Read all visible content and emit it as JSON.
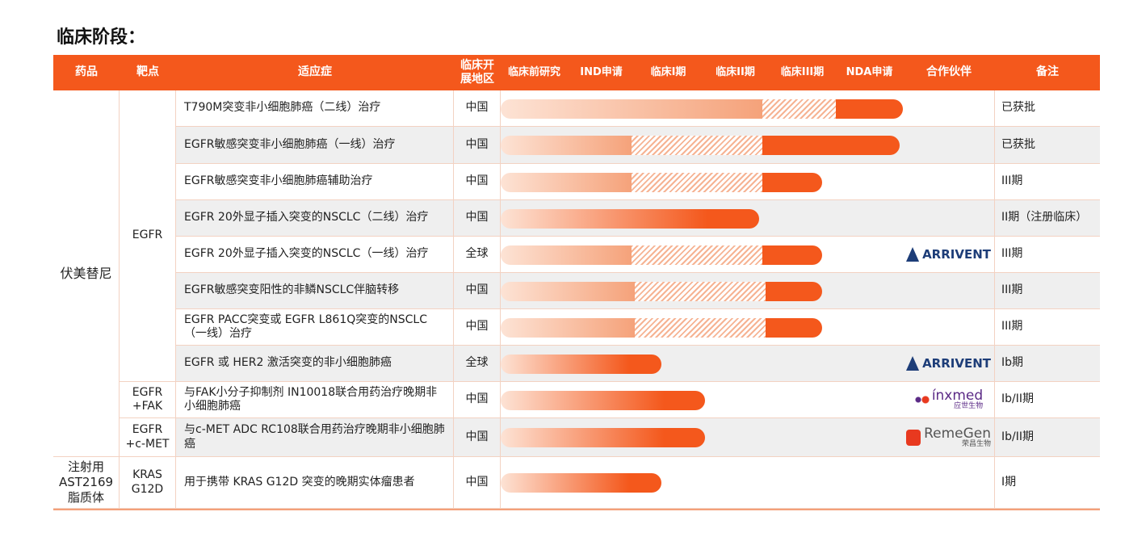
{
  "title": "临床阶段：",
  "table": {
    "header": [
      "药品",
      "靶点",
      "适应症",
      "临床开展地区",
      "临床前研究",
      "IND申请",
      "临床I期",
      "临床II期",
      "临床III期",
      "NDA申请",
      "合作伙伴",
      "备注"
    ],
    "drugs": [
      {
        "name": "伏美替尼",
        "targets": [
          {
            "name": "EGFR",
            "rows": [
              {
                "indication": "T790M突变非小细胞肺癌（二线）治疗",
                "region": "中国",
                "bar": {
                  "hatch": [
                    3.9,
                    5.0
                  ],
                  "end": 6.0
                },
                "note": "已获批"
              },
              {
                "indication": "EGFR敏感突变非小细胞肺癌（一线）治疗",
                "region": "中国",
                "bar": {
                  "hatch": [
                    1.95,
                    3.9
                  ],
                  "end": 5.95
                },
                "note": "已获批"
              },
              {
                "indication": "EGFR敏感突变非小细胞肺癌辅助治疗",
                "region": "中国",
                "bar": {
                  "hatch": [
                    1.95,
                    3.9
                  ],
                  "end": 4.8
                },
                "note": "III期"
              },
              {
                "indication": "EGFR 20外显子插入突变的NSCLC（二线）治疗",
                "region": "中国",
                "bar": {
                  "end": 3.85
                },
                "note": "II期（注册临床）"
              },
              {
                "indication": "EGFR 20外显子插入突变的NSCLC（一线）治疗",
                "region": "全球",
                "bar": {
                  "hatch": [
                    1.95,
                    3.9
                  ],
                  "end": 4.8
                },
                "partner": {
                  "name": "ARRIVENT",
                  "color": "#1d3d78"
                },
                "note": "III期"
              },
              {
                "indication": "EGFR敏感突变阳性的非鳞NSCLC伴脑转移",
                "region": "中国",
                "bar": {
                  "hatch": [
                    2.0,
                    3.95
                  ],
                  "end": 4.8
                },
                "note": "III期"
              },
              {
                "indication": "EGFR PACC突变或 EGFR L861Q突变的NSCLC（一线）治疗",
                "region": "中国",
                "bar": {
                  "hatch": [
                    2.0,
                    3.95
                  ],
                  "end": 4.8
                },
                "note": "III期"
              },
              {
                "indication": "EGFR 或 HER2 激活突变的非小细胞肺癌",
                "region": "全球",
                "bar": {
                  "end": 2.4
                },
                "partner": {
                  "name": "ARRIVENT",
                  "color": "#1d3d78"
                },
                "note": "Ib期"
              }
            ]
          },
          {
            "name": "EGFR +FAK",
            "rows": [
              {
                "indication": "与FAK小分子抑制剂 IN10018联合用药治疗晚期非小细胞肺癌",
                "region": "中国",
                "bar": {
                  "end": 3.05
                },
                "partner": {
                  "name": "ínxmed",
                  "sub": "应世生物",
                  "color": "#5b2a86"
                },
                "note": "Ib/II期"
              }
            ]
          },
          {
            "name": "EGFR +c-MET",
            "rows": [
              {
                "indication": "与c-MET ADC RC108联合用药治疗晚期非小细胞肺癌",
                "region": "中国",
                "bar": {
                  "end": 3.05
                },
                "partner": {
                  "name": "RemeGen",
                  "sub": "荣昌生物",
                  "color": "#555555"
                },
                "note": "Ib/II期"
              }
            ]
          }
        ]
      },
      {
        "name": "注射用AST2169脂质体",
        "targets": [
          {
            "name": "KRAS G12D",
            "rows": [
              {
                "indication": "用于携带 KRAS G12D 突变的晚期实体瘤患者",
                "region": "中国",
                "bar": {
                  "end": 2.4
                },
                "note": "I期"
              }
            ]
          }
        ]
      }
    ]
  }
}
